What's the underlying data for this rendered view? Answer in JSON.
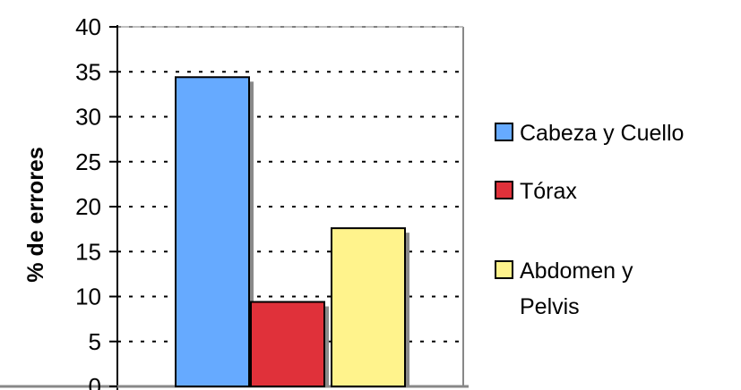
{
  "chart_data": {
    "type": "bar",
    "title": "",
    "xlabel": "",
    "ylabel": "% de errores",
    "ylim": [
      0,
      40
    ],
    "yticks": [
      0,
      5,
      10,
      15,
      20,
      25,
      30,
      35,
      40
    ],
    "grid": "horizontal dotted",
    "legend_position": "right",
    "series": [
      {
        "name": "Cabeza y Cuello",
        "legend_lines": [
          "Cabeza y Cuello"
        ],
        "value": 34.4,
        "color": "#66aaff"
      },
      {
        "name": "Tórax",
        "legend_lines": [
          "Tórax"
        ],
        "value": 9.4,
        "color": "#e0313a"
      },
      {
        "name": "Abdomen y Pelvis",
        "legend_lines": [
          "Abdomen y",
          "Pelvis"
        ],
        "value": 17.6,
        "color": "#fff38c"
      }
    ]
  }
}
